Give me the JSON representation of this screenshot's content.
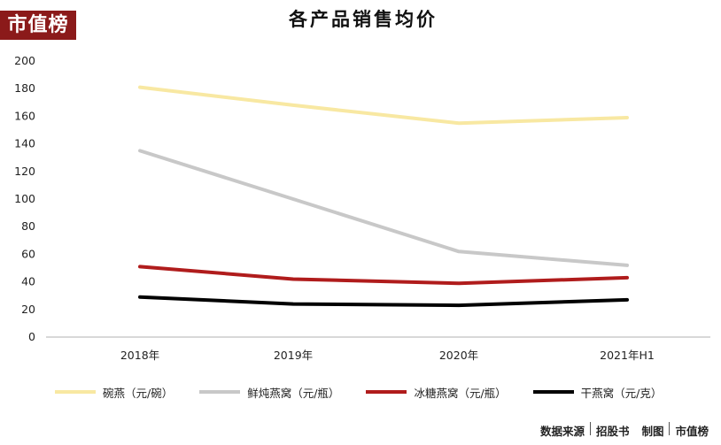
{
  "brand": {
    "logo_text": "市值榜"
  },
  "footer": {
    "source_label": "数据来源",
    "source_name": "招股书",
    "maker_label": "制图",
    "maker_name": "市值榜"
  },
  "chart_data": {
    "type": "line",
    "title": "各产品销售均价",
    "xlabel": "",
    "ylabel": "",
    "categories": [
      "2018年",
      "2019年",
      "2020年",
      "2021年H1"
    ],
    "ylim": [
      0,
      200
    ],
    "yticks": [
      0,
      20,
      40,
      60,
      80,
      100,
      120,
      140,
      160,
      180,
      200
    ],
    "grid": false,
    "legend_position": "bottom",
    "series": [
      {
        "name": "碗燕（元/碗）",
        "color": "#f8e8a2",
        "values": [
          181,
          168,
          155,
          159
        ]
      },
      {
        "name": "鲜炖燕窝（元/瓶）",
        "color": "#c8c8c8",
        "values": [
          135,
          100,
          62,
          52
        ]
      },
      {
        "name": "冰糖燕窝（元/瓶）",
        "color": "#b01c1c",
        "values": [
          51,
          42,
          39,
          43
        ]
      },
      {
        "name": "干燕窝（元/克）",
        "color": "#000000",
        "values": [
          29,
          24,
          23,
          27
        ]
      }
    ]
  }
}
